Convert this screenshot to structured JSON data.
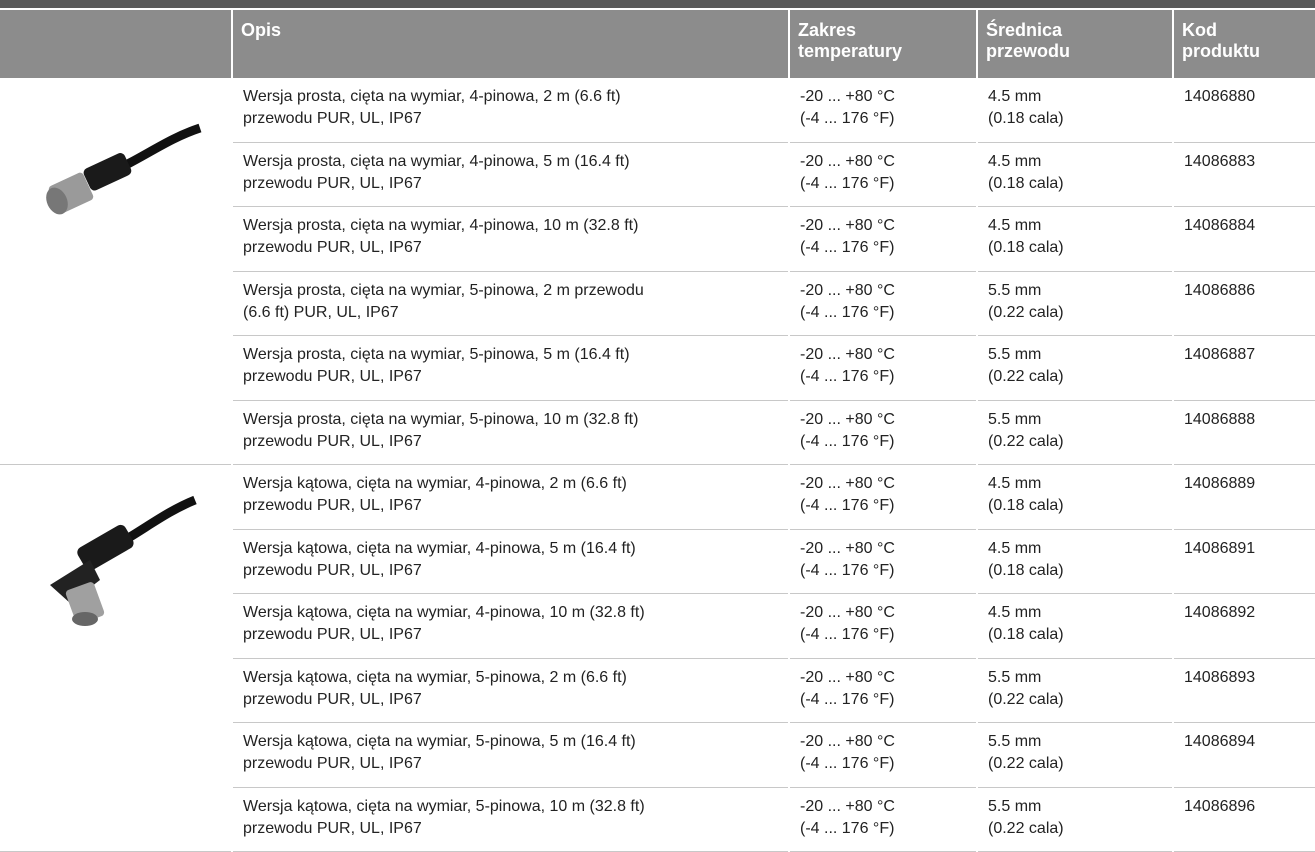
{
  "table": {
    "header": [
      [
        "Opis"
      ],
      [
        "Zakres",
        "temperatury"
      ],
      [
        "Średnica",
        "przewodu"
      ],
      [
        "Kod",
        "produktu"
      ]
    ],
    "rows": [
      [
        [
          "Wersja prosta, cięta na wymiar, 4-pinowa, 2 m (6.6 ft)",
          "przewodu PUR, UL, IP67"
        ],
        [
          "-20 ... +80 °C",
          "(-4 ... 176 °F)"
        ],
        [
          "4.5 mm",
          "(0.18 cala)"
        ],
        [
          "14086880"
        ]
      ],
      [
        [
          "Wersja prosta, cięta na wymiar, 4-pinowa, 5 m (16.4 ft)",
          "przewodu PUR, UL, IP67"
        ],
        [
          "-20 ... +80 °C",
          "(-4 ... 176 °F)"
        ],
        [
          "4.5 mm",
          "(0.18 cala)"
        ],
        [
          "14086883"
        ]
      ],
      [
        [
          "Wersja prosta, cięta na wymiar, 4-pinowa, 10 m (32.8 ft)",
          "przewodu PUR, UL, IP67"
        ],
        [
          "-20 ... +80 °C",
          "(-4 ... 176 °F)"
        ],
        [
          "4.5 mm",
          "(0.18 cala)"
        ],
        [
          "14086884"
        ]
      ],
      [
        [
          "Wersja prosta, cięta na wymiar, 5-pinowa, 2 m przewodu",
          "(6.6 ft) PUR, UL, IP67"
        ],
        [
          "-20 ... +80 °C",
          "(-4 ... 176 °F)"
        ],
        [
          "5.5 mm",
          "(0.22 cala)"
        ],
        [
          "14086886"
        ]
      ],
      [
        [
          "Wersja prosta, cięta na wymiar, 5-pinowa, 5 m (16.4 ft)",
          "przewodu PUR, UL, IP67"
        ],
        [
          "-20 ... +80 °C",
          "(-4 ... 176 °F)"
        ],
        [
          "5.5 mm",
          "(0.22 cala)"
        ],
        [
          "14086887"
        ]
      ],
      [
        [
          "Wersja prosta, cięta na wymiar, 5-pinowa, 10 m (32.8 ft)",
          "przewodu PUR, UL, IP67"
        ],
        [
          "-20 ... +80 °C",
          "(-4 ... 176 °F)"
        ],
        [
          "5.5 mm",
          "(0.22 cala)"
        ],
        [
          "14086888"
        ]
      ],
      [
        [
          "Wersja kątowa, cięta na wymiar, 4-pinowa, 2 m (6.6 ft)",
          "przewodu PUR, UL, IP67"
        ],
        [
          "-20 ... +80 °C",
          "(-4 ... 176 °F)"
        ],
        [
          "4.5 mm",
          "(0.18 cala)"
        ],
        [
          "14086889"
        ]
      ],
      [
        [
          "Wersja kątowa, cięta na wymiar, 4-pinowa, 5 m (16.4 ft)",
          "przewodu PUR, UL, IP67"
        ],
        [
          "-20 ... +80 °C",
          "(-4 ... 176 °F)"
        ],
        [
          "4.5 mm",
          "(0.18 cala)"
        ],
        [
          "14086891"
        ]
      ],
      [
        [
          "Wersja kątowa, cięta na wymiar, 4-pinowa, 10 m (32.8 ft)",
          "przewodu PUR, UL, IP67"
        ],
        [
          "-20 ... +80 °C",
          "(-4 ... 176 °F)"
        ],
        [
          "4.5 mm",
          "(0.18 cala)"
        ],
        [
          "14086892"
        ]
      ],
      [
        [
          "Wersja kątowa, cięta na wymiar, 5-pinowa, 2 m (6.6 ft)",
          "przewodu PUR, UL, IP67"
        ],
        [
          "-20 ... +80 °C",
          "(-4 ... 176 °F)"
        ],
        [
          "5.5 mm",
          "(0.22 cala)"
        ],
        [
          "14086893"
        ]
      ],
      [
        [
          "Wersja kątowa, cięta na wymiar, 5-pinowa, 5 m (16.4 ft)",
          "przewodu PUR, UL, IP67"
        ],
        [
          "-20 ... +80 °C",
          "(-4 ... 176 °F)"
        ],
        [
          "5.5 mm",
          "(0.22 cala)"
        ],
        [
          "14086894"
        ]
      ],
      [
        [
          "Wersja kątowa, cięta na wymiar, 5-pinowa, 10 m (32.8 ft)",
          "przewodu PUR, UL, IP67"
        ],
        [
          "-20 ... +80 °C",
          "(-4 ... 176 °F)"
        ],
        [
          "5.5 mm",
          "(0.22 cala)"
        ],
        [
          "14086896"
        ]
      ]
    ]
  }
}
